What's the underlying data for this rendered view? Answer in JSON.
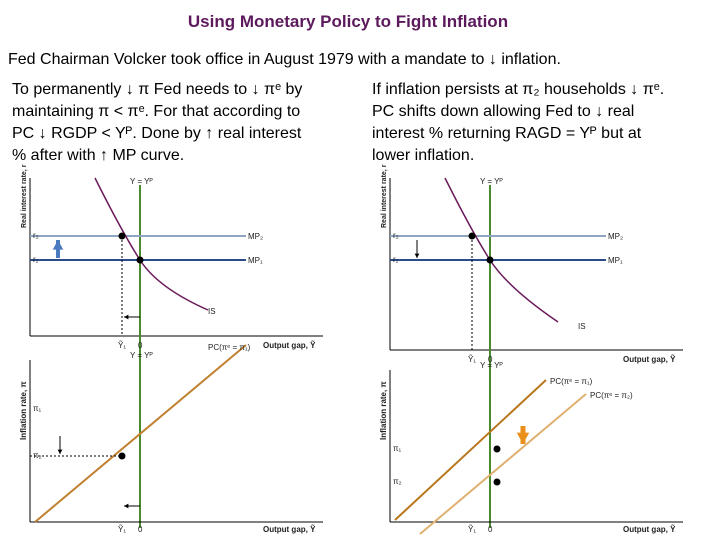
{
  "title": "Using Monetary Policy to Fight Inflation",
  "intro": "Fed Chairman Volcker took office in August 1979 with a mandate to ↓ inflation.",
  "left": {
    "lines": [
      "To permanently ↓ π Fed needs to ↓ πᵉ by",
      "maintaining π < πᵉ. For that according to",
      "PC ↓ RGDP < Yᴾ. Done by ↑ real interest",
      "% after with ↑ MP curve."
    ],
    "top": {
      "y_axis": "Real interest rate, r",
      "vertical": "Y = Yᴾ",
      "r_high": "r₂",
      "r_low": "r₁",
      "mp_high": "MP₂",
      "mp_low": "MP₁",
      "is": "IS",
      "gap": "Ỹ₁",
      "zero": "0",
      "x_axis": "Output gap, Ỹ"
    },
    "bottom": {
      "y_axis": "Inflation rate, π",
      "vertical": "Y = Yᴾ",
      "pc_1": "PC(πᵉ = π₁)",
      "pi_1": "π₁",
      "pi_2": "π₂",
      "gap": "Ỹ₁",
      "zero": "0",
      "x_axis": "Output gap, Ỹ"
    }
  },
  "right": {
    "lines": [
      "If inflation persists at π₂ households ↓ πᵉ.",
      "PC shifts down allowing Fed to ↓ real",
      "interest % returning RAGD = Yᴾ but at",
      "lower inflation."
    ],
    "top": {
      "y_axis": "Real interest rate, r",
      "vertical": "Y = Yᴾ",
      "r_high": "r₂",
      "r_low": "r₁",
      "mp_high": "MP₂",
      "mp_low": "MP₁",
      "is": "IS",
      "gap": "Ỹ₁",
      "zero": "0",
      "x_axis": "Output gap, Ỹ"
    },
    "bottom": {
      "y_axis": "Inflation rate, π",
      "vertical": "Y = Yᴾ",
      "pc_1": "PC(πᵉ = π₁)",
      "pc_2": "PC(πᵉ = π₂)",
      "pi_1": "π₁",
      "pi_2": "π₂",
      "gap": "Ỹ₁",
      "zero": "0",
      "x_axis": "Output gap, Ỹ"
    }
  }
}
